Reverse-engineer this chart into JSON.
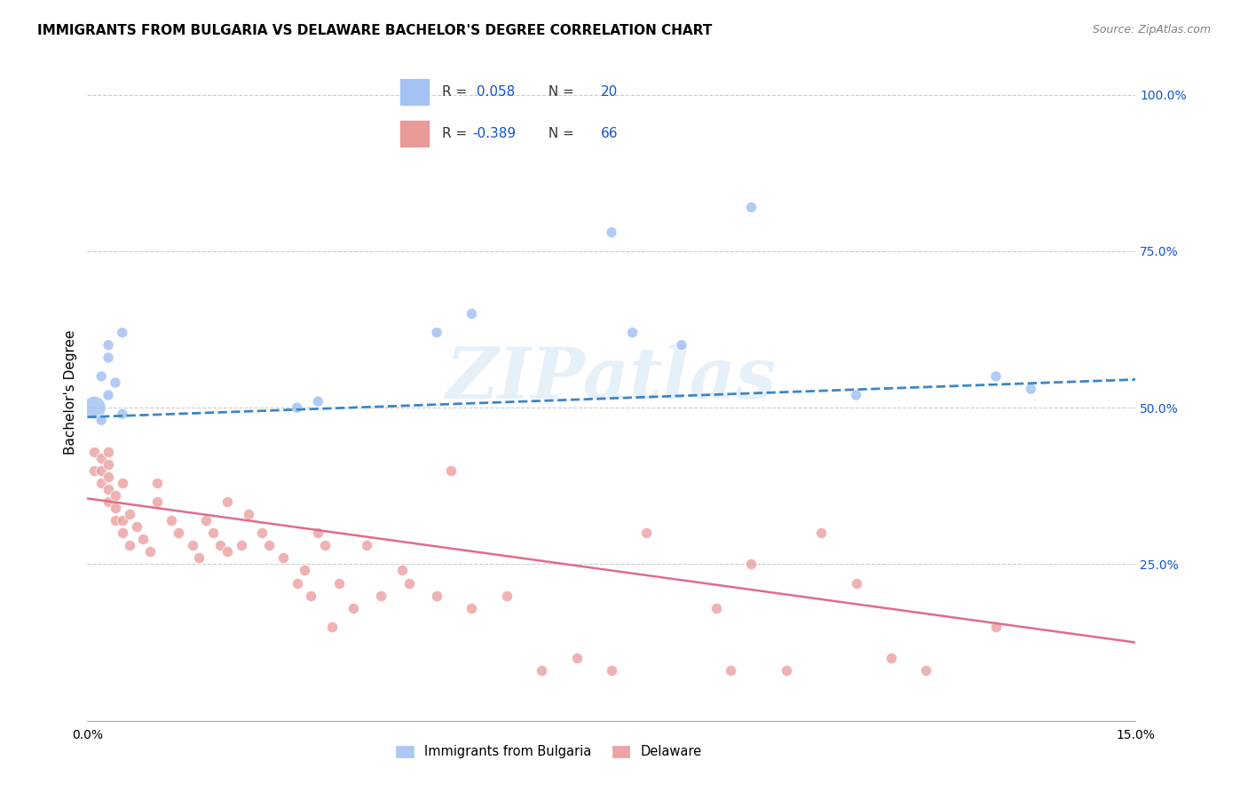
{
  "title": "IMMIGRANTS FROM BULGARIA VS DELAWARE BACHELOR'S DEGREE CORRELATION CHART",
  "source": "Source: ZipAtlas.com",
  "ylabel": "Bachelor's Degree",
  "right_yticks": [
    "100.0%",
    "75.0%",
    "50.0%",
    "25.0%"
  ],
  "right_ytick_vals": [
    1.0,
    0.75,
    0.5,
    0.25
  ],
  "xlim": [
    0.0,
    0.15
  ],
  "ylim": [
    0.0,
    1.05
  ],
  "blue_color": "#a4c2f4",
  "pink_color": "#ea9999",
  "blue_line_color": "#3d85c8",
  "pink_line_color": "#e06c8a",
  "blue_line_style": "solid",
  "watermark": "ZIPatlas",
  "bg_color": "#ffffff",
  "grid_color": "#cccccc",
  "blue_scatter_x": [
    0.001,
    0.002,
    0.002,
    0.003,
    0.003,
    0.003,
    0.004,
    0.005,
    0.005,
    0.03,
    0.033,
    0.05,
    0.055,
    0.075,
    0.078,
    0.085,
    0.095,
    0.11,
    0.13,
    0.135
  ],
  "blue_scatter_y": [
    0.5,
    0.55,
    0.48,
    0.52,
    0.58,
    0.6,
    0.54,
    0.49,
    0.62,
    0.5,
    0.51,
    0.62,
    0.65,
    0.78,
    0.62,
    0.6,
    0.82,
    0.52,
    0.55,
    0.53
  ],
  "blue_scatter_sizes": [
    350,
    80,
    80,
    80,
    80,
    80,
    80,
    80,
    80,
    80,
    80,
    80,
    80,
    80,
    80,
    80,
    80,
    80,
    80,
    80
  ],
  "pink_scatter_x": [
    0.001,
    0.001,
    0.002,
    0.002,
    0.002,
    0.003,
    0.003,
    0.003,
    0.003,
    0.003,
    0.004,
    0.004,
    0.004,
    0.005,
    0.005,
    0.005,
    0.006,
    0.006,
    0.007,
    0.008,
    0.009,
    0.01,
    0.01,
    0.012,
    0.013,
    0.015,
    0.016,
    0.017,
    0.018,
    0.019,
    0.02,
    0.02,
    0.022,
    0.023,
    0.025,
    0.026,
    0.028,
    0.03,
    0.031,
    0.032,
    0.033,
    0.034,
    0.035,
    0.036,
    0.038,
    0.04,
    0.042,
    0.045,
    0.046,
    0.05,
    0.052,
    0.055,
    0.06,
    0.065,
    0.07,
    0.075,
    0.08,
    0.09,
    0.092,
    0.095,
    0.1,
    0.105,
    0.11,
    0.115,
    0.12,
    0.13
  ],
  "pink_scatter_y": [
    0.4,
    0.43,
    0.38,
    0.4,
    0.42,
    0.35,
    0.37,
    0.39,
    0.41,
    0.43,
    0.32,
    0.34,
    0.36,
    0.3,
    0.32,
    0.38,
    0.28,
    0.33,
    0.31,
    0.29,
    0.27,
    0.35,
    0.38,
    0.32,
    0.3,
    0.28,
    0.26,
    0.32,
    0.3,
    0.28,
    0.35,
    0.27,
    0.28,
    0.33,
    0.3,
    0.28,
    0.26,
    0.22,
    0.24,
    0.2,
    0.3,
    0.28,
    0.15,
    0.22,
    0.18,
    0.28,
    0.2,
    0.24,
    0.22,
    0.2,
    0.4,
    0.18,
    0.2,
    0.08,
    0.1,
    0.08,
    0.3,
    0.18,
    0.08,
    0.25,
    0.08,
    0.3,
    0.22,
    0.1,
    0.08,
    0.15
  ],
  "blue_line_x": [
    0.0,
    0.15
  ],
  "blue_line_y": [
    0.485,
    0.545
  ],
  "pink_line_x": [
    0.0,
    0.15
  ],
  "pink_line_y": [
    0.355,
    0.125
  ],
  "title_fontsize": 11,
  "axis_label_fontsize": 11,
  "tick_fontsize": 10,
  "source_fontsize": 9,
  "legend_label_color": "#1155cc",
  "legend_r_color": "#333333"
}
